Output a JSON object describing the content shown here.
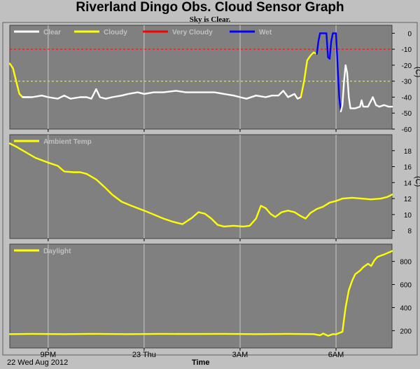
{
  "page": {
    "title": "Riverland Dingo Obs. Cloud Sensor Graph",
    "subtitle": "Sky is Clear.",
    "date_label": "22 Wed Aug 2012",
    "time_label": "Time"
  },
  "colors": {
    "plot_bg": "#808080",
    "grid": "#c8c8c8",
    "clear": "#ffffff",
    "cloudy": "#ffff00",
    "very_cloudy": "#ff0000",
    "wet": "#0000ff",
    "legend_text": "#c0c0c0"
  },
  "chart_data": [
    {
      "type": "line",
      "ylabel": "(C)",
      "ylim": [
        -60,
        5
      ],
      "yticks": [
        0,
        -10,
        -20,
        -30,
        -40,
        -50,
        -60
      ],
      "ytick_labels": [
        "0",
        "-10",
        "-20",
        "-30",
        "-40",
        "-50",
        "-60"
      ],
      "xticks": [
        21,
        24,
        27,
        30
      ],
      "xtick_labels": [
        "9PM",
        "23 Thu",
        "3AM",
        "6AM"
      ],
      "xlim": [
        19.8,
        31.75
      ],
      "hlines": [
        {
          "y": -10,
          "color": "#ff0000",
          "style": "dashed"
        },
        {
          "y": -30,
          "color": "#ffff00",
          "style": "dashed"
        }
      ],
      "legend": [
        {
          "name": "Clear",
          "color": "#ffffff"
        },
        {
          "name": "Cloudy",
          "color": "#ffff00"
        },
        {
          "name": "Very Cloudy",
          "color": "#ff0000"
        },
        {
          "name": "Wet",
          "color": "#0000ff"
        }
      ],
      "series": [
        {
          "color": "#ffff00",
          "points": [
            [
              19.8,
              -19
            ],
            [
              19.9,
              -22
            ],
            [
              20.0,
              -30
            ],
            [
              20.1,
              -38
            ],
            [
              20.2,
              -40
            ],
            [
              20.4,
              -40
            ]
          ]
        },
        {
          "color": "#ffffff",
          "points": [
            [
              20.2,
              -40
            ],
            [
              20.5,
              -40
            ],
            [
              20.8,
              -39
            ],
            [
              21.0,
              -40
            ],
            [
              21.3,
              -41
            ],
            [
              21.5,
              -39
            ],
            [
              21.7,
              -41
            ],
            [
              22.0,
              -40
            ],
            [
              22.2,
              -40
            ],
            [
              22.35,
              -41
            ],
            [
              22.5,
              -35
            ],
            [
              22.62,
              -40
            ],
            [
              22.8,
              -41
            ],
            [
              23.0,
              -40
            ],
            [
              23.3,
              -39
            ],
            [
              23.5,
              -38
            ],
            [
              23.8,
              -37
            ],
            [
              24.0,
              -38
            ],
            [
              24.3,
              -37
            ],
            [
              24.6,
              -37
            ],
            [
              25.0,
              -36
            ],
            [
              25.3,
              -37
            ],
            [
              25.6,
              -37
            ],
            [
              25.9,
              -37
            ],
            [
              26.2,
              -37
            ],
            [
              26.5,
              -38
            ],
            [
              26.8,
              -39
            ],
            [
              27.0,
              -40
            ],
            [
              27.2,
              -41
            ],
            [
              27.5,
              -39
            ],
            [
              27.8,
              -40
            ],
            [
              28.0,
              -39
            ],
            [
              28.2,
              -39
            ],
            [
              28.35,
              -36
            ],
            [
              28.5,
              -40
            ],
            [
              28.7,
              -38
            ],
            [
              28.8,
              -41
            ],
            [
              28.9,
              -40
            ]
          ]
        },
        {
          "color": "#ffff00",
          "points": [
            [
              28.9,
              -40
            ],
            [
              29.0,
              -30
            ],
            [
              29.1,
              -17
            ],
            [
              29.2,
              -14
            ],
            [
              29.3,
              -12
            ],
            [
              29.4,
              -13
            ]
          ]
        },
        {
          "color": "#0000ff",
          "points": [
            [
              29.4,
              -13
            ],
            [
              29.45,
              -5
            ],
            [
              29.5,
              0
            ],
            [
              29.7,
              0
            ],
            [
              29.75,
              -15
            ],
            [
              29.8,
              -16
            ],
            [
              29.85,
              -5
            ],
            [
              29.9,
              0
            ],
            [
              30.0,
              0
            ],
            [
              30.05,
              -20
            ],
            [
              30.1,
              -40
            ],
            [
              30.15,
              -49
            ]
          ]
        },
        {
          "color": "#ffffff",
          "points": [
            [
              30.15,
              -49
            ],
            [
              30.2,
              -45
            ],
            [
              30.25,
              -30
            ],
            [
              30.3,
              -20
            ],
            [
              30.35,
              -25
            ],
            [
              30.4,
              -40
            ],
            [
              30.45,
              -47
            ],
            [
              30.6,
              -47
            ],
            [
              30.75,
              -46
            ],
            [
              30.8,
              -42
            ],
            [
              30.85,
              -46
            ],
            [
              31.0,
              -46
            ],
            [
              31.15,
              -40
            ],
            [
              31.25,
              -45
            ],
            [
              31.35,
              -46
            ],
            [
              31.5,
              -45
            ],
            [
              31.65,
              -46
            ],
            [
              31.75,
              -46
            ]
          ]
        }
      ]
    },
    {
      "type": "line",
      "ylabel": "(C)",
      "ylim": [
        7,
        20
      ],
      "yticks": [
        8,
        10,
        12,
        14,
        16,
        18
      ],
      "ytick_labels": [
        "8",
        "10",
        "12",
        "14",
        "16",
        "18"
      ],
      "xticks": [
        21,
        24,
        27,
        30
      ],
      "xtick_labels": [
        "9PM",
        "23 Thu",
        "3AM",
        "6AM"
      ],
      "xlim": [
        19.8,
        31.75
      ],
      "legend": [
        {
          "name": "Ambient Temp",
          "color": "#ffff00"
        }
      ],
      "series": [
        {
          "name": "Ambient Temp",
          "color": "#ffff00",
          "points": [
            [
              19.8,
              18.9
            ],
            [
              20.0,
              18.5
            ],
            [
              20.3,
              17.8
            ],
            [
              20.6,
              17.1
            ],
            [
              21.0,
              16.5
            ],
            [
              21.3,
              16.1
            ],
            [
              21.5,
              15.4
            ],
            [
              21.8,
              15.3
            ],
            [
              22.0,
              15.3
            ],
            [
              22.2,
              15.1
            ],
            [
              22.5,
              14.4
            ],
            [
              22.8,
              13.3
            ],
            [
              23.0,
              12.5
            ],
            [
              23.3,
              11.6
            ],
            [
              23.6,
              11.1
            ],
            [
              24.0,
              10.5
            ],
            [
              24.3,
              10.0
            ],
            [
              24.6,
              9.5
            ],
            [
              24.9,
              9.1
            ],
            [
              25.2,
              8.8
            ],
            [
              25.5,
              9.6
            ],
            [
              25.7,
              10.3
            ],
            [
              25.9,
              10.1
            ],
            [
              26.1,
              9.5
            ],
            [
              26.3,
              8.7
            ],
            [
              26.5,
              8.5
            ],
            [
              26.8,
              8.6
            ],
            [
              27.1,
              8.5
            ],
            [
              27.3,
              8.6
            ],
            [
              27.5,
              9.5
            ],
            [
              27.65,
              11.1
            ],
            [
              27.8,
              10.8
            ],
            [
              27.95,
              10.1
            ],
            [
              28.1,
              9.7
            ],
            [
              28.3,
              10.3
            ],
            [
              28.5,
              10.5
            ],
            [
              28.7,
              10.3
            ],
            [
              28.9,
              9.8
            ],
            [
              29.05,
              9.5
            ],
            [
              29.2,
              10.2
            ],
            [
              29.4,
              10.7
            ],
            [
              29.6,
              11.0
            ],
            [
              29.8,
              11.5
            ],
            [
              30.0,
              11.7
            ],
            [
              30.2,
              12.0
            ],
            [
              30.5,
              12.1
            ],
            [
              30.8,
              12.0
            ],
            [
              31.1,
              11.9
            ],
            [
              31.4,
              12.0
            ],
            [
              31.6,
              12.2
            ],
            [
              31.75,
              12.5
            ]
          ]
        }
      ]
    },
    {
      "type": "line",
      "ylim": [
        50,
        950
      ],
      "yticks": [
        200,
        400,
        600,
        800
      ],
      "ytick_labels": [
        "200",
        "400",
        "600",
        "800"
      ],
      "xticks": [
        21,
        24,
        27,
        30
      ],
      "xtick_labels": [
        "9PM",
        "23 Thu",
        "3AM",
        "6AM"
      ],
      "xlim": [
        19.8,
        31.75
      ],
      "legend": [
        {
          "name": "Daylight",
          "color": "#ffff00"
        }
      ],
      "series": [
        {
          "name": "Daylight",
          "color": "#ffff00",
          "points": [
            [
              19.8,
              170
            ],
            [
              20.5,
              172
            ],
            [
              21.5,
              170
            ],
            [
              22.5,
              172
            ],
            [
              23.5,
              170
            ],
            [
              24.5,
              172
            ],
            [
              25.5,
              171
            ],
            [
              26.5,
              172
            ],
            [
              27.5,
              170
            ],
            [
              28.5,
              172
            ],
            [
              29.3,
              170
            ],
            [
              29.5,
              160
            ],
            [
              29.6,
              175
            ],
            [
              29.75,
              155
            ],
            [
              29.9,
              170
            ],
            [
              30.0,
              168
            ],
            [
              30.1,
              180
            ],
            [
              30.2,
              190
            ],
            [
              30.25,
              300
            ],
            [
              30.3,
              400
            ],
            [
              30.4,
              550
            ],
            [
              30.5,
              630
            ],
            [
              30.6,
              690
            ],
            [
              30.75,
              720
            ],
            [
              30.85,
              750
            ],
            [
              31.0,
              780
            ],
            [
              31.1,
              760
            ],
            [
              31.2,
              810
            ],
            [
              31.3,
              840
            ],
            [
              31.5,
              860
            ],
            [
              31.75,
              890
            ]
          ]
        }
      ]
    }
  ]
}
